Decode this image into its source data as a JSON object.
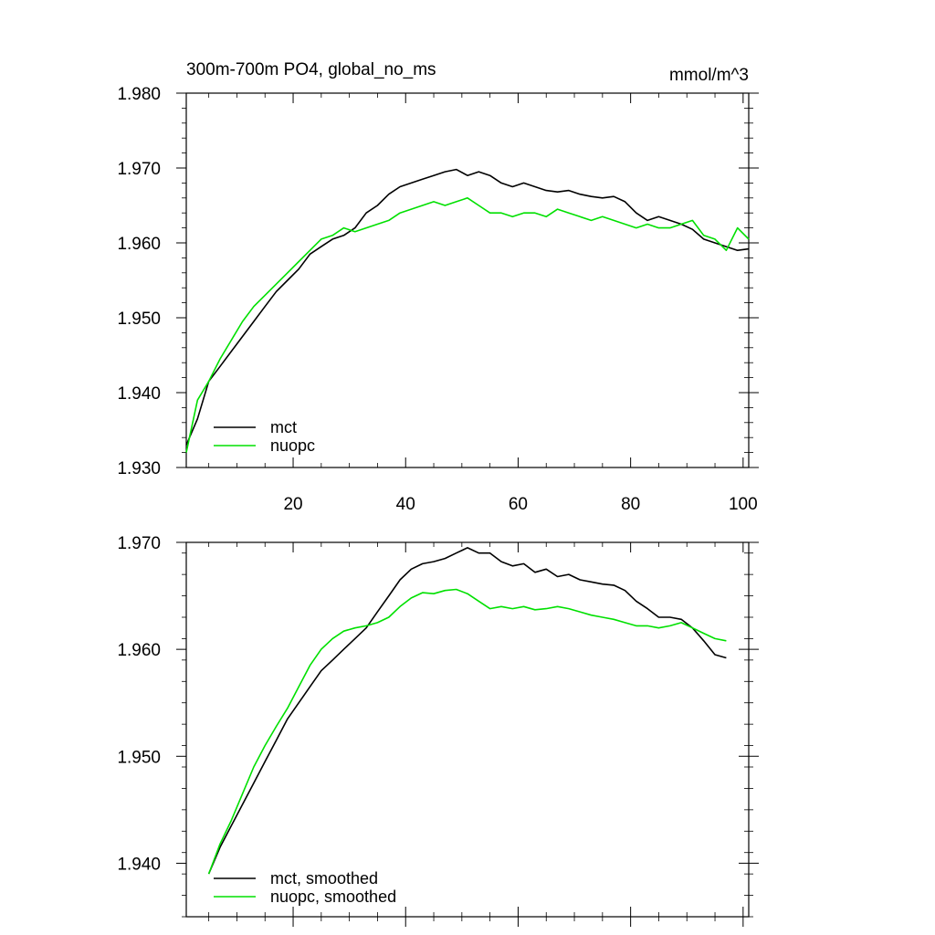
{
  "title_left": "300m-700m PO4, global_no_ms",
  "title_right": "mmol/m^3",
  "chart_data": [
    {
      "type": "line",
      "title": "300m-700m PO4, global_no_ms",
      "units": "mmol/m^3",
      "xlim": [
        1,
        101
      ],
      "ylim": [
        1.93,
        1.98
      ],
      "xticks": [
        20,
        40,
        60,
        80,
        100
      ],
      "xtick_labels": [
        "20",
        "40",
        "60",
        "80",
        "100"
      ],
      "yticks": [
        1.93,
        1.94,
        1.95,
        1.96,
        1.97,
        1.98
      ],
      "ytick_labels": [
        "1.930",
        "1.940",
        "1.950",
        "1.960",
        "1.970",
        "1.980"
      ],
      "legend_position": "bottom-left",
      "series": [
        {
          "name": "mct",
          "color": "#000000",
          "x": [
            1,
            3,
            5,
            7,
            9,
            11,
            13,
            15,
            17,
            19,
            21,
            23,
            25,
            27,
            29,
            31,
            33,
            35,
            37,
            39,
            41,
            43,
            45,
            47,
            49,
            51,
            53,
            55,
            57,
            59,
            61,
            63,
            65,
            67,
            69,
            71,
            73,
            75,
            77,
            79,
            81,
            83,
            85,
            87,
            89,
            91,
            93,
            95,
            97,
            99,
            101
          ],
          "values": [
            1.933,
            1.9365,
            1.9415,
            1.9435,
            1.9455,
            1.9475,
            1.9495,
            1.9515,
            1.9535,
            1.955,
            1.9565,
            1.9585,
            1.9595,
            1.9605,
            1.961,
            1.962,
            1.964,
            1.965,
            1.9665,
            1.9675,
            1.968,
            1.9685,
            1.969,
            1.9695,
            1.9698,
            1.969,
            1.9695,
            1.969,
            1.968,
            1.9675,
            1.968,
            1.9675,
            1.967,
            1.9668,
            1.967,
            1.9665,
            1.9662,
            1.966,
            1.9662,
            1.9655,
            1.964,
            1.963,
            1.9635,
            1.963,
            1.9625,
            1.9618,
            1.9605,
            1.96,
            1.9595,
            1.959,
            1.9592
          ]
        },
        {
          "name": "nuopc",
          "color": "#00e000",
          "x": [
            1,
            3,
            5,
            7,
            9,
            11,
            13,
            15,
            17,
            19,
            21,
            23,
            25,
            27,
            29,
            31,
            33,
            35,
            37,
            39,
            41,
            43,
            45,
            47,
            49,
            51,
            53,
            55,
            57,
            59,
            61,
            63,
            65,
            67,
            69,
            71,
            73,
            75,
            77,
            79,
            81,
            83,
            85,
            87,
            89,
            91,
            93,
            95,
            97,
            99,
            101
          ],
          "values": [
            1.932,
            1.939,
            1.9415,
            1.9445,
            1.947,
            1.9495,
            1.9515,
            1.953,
            1.9545,
            1.956,
            1.9575,
            1.959,
            1.9605,
            1.961,
            1.962,
            1.9615,
            1.962,
            1.9625,
            1.963,
            1.964,
            1.9645,
            1.965,
            1.9655,
            1.965,
            1.9655,
            1.966,
            1.965,
            1.964,
            1.964,
            1.9635,
            1.964,
            1.964,
            1.9635,
            1.9645,
            1.964,
            1.9635,
            1.963,
            1.9635,
            1.963,
            1.9625,
            1.962,
            1.9625,
            1.962,
            1.962,
            1.9625,
            1.963,
            1.961,
            1.9605,
            1.959,
            1.962,
            1.9605
          ]
        }
      ]
    },
    {
      "type": "line",
      "xlim": [
        1,
        101
      ],
      "ylim": [
        1.935,
        1.97
      ],
      "xticks": [
        20,
        40,
        60,
        80,
        100
      ],
      "yticks": [
        1.94,
        1.95,
        1.96,
        1.97
      ],
      "ytick_labels": [
        "1.940",
        "1.950",
        "1.960",
        "1.970"
      ],
      "legend_position": "bottom-left",
      "series": [
        {
          "name": "mct, smoothed",
          "color": "#000000",
          "x": [
            5,
            7,
            9,
            11,
            13,
            15,
            17,
            19,
            21,
            23,
            25,
            27,
            29,
            31,
            33,
            35,
            37,
            39,
            41,
            43,
            45,
            47,
            49,
            51,
            53,
            55,
            57,
            59,
            61,
            63,
            65,
            67,
            69,
            71,
            73,
            75,
            77,
            79,
            81,
            83,
            85,
            87,
            89,
            91,
            93,
            95,
            97
          ],
          "values": [
            1.939,
            1.9415,
            1.9435,
            1.9455,
            1.9475,
            1.9495,
            1.9515,
            1.9535,
            1.955,
            1.9565,
            1.958,
            1.959,
            1.96,
            1.961,
            1.962,
            1.9635,
            1.965,
            1.9665,
            1.9675,
            1.968,
            1.9682,
            1.9685,
            1.969,
            1.9695,
            1.969,
            1.969,
            1.9682,
            1.9678,
            1.968,
            1.9672,
            1.9675,
            1.9668,
            1.967,
            1.9665,
            1.9663,
            1.9661,
            1.966,
            1.9655,
            1.9645,
            1.9638,
            1.963,
            1.963,
            1.9628,
            1.962,
            1.9608,
            1.9595,
            1.9592
          ]
        },
        {
          "name": "nuopc, smoothed",
          "color": "#00e000",
          "x": [
            5,
            7,
            9,
            11,
            13,
            15,
            17,
            19,
            21,
            23,
            25,
            27,
            29,
            31,
            33,
            35,
            37,
            39,
            41,
            43,
            45,
            47,
            49,
            51,
            53,
            55,
            57,
            59,
            61,
            63,
            65,
            67,
            69,
            71,
            73,
            75,
            77,
            79,
            81,
            83,
            85,
            87,
            89,
            91,
            93,
            95,
            97
          ],
          "values": [
            1.939,
            1.9418,
            1.944,
            1.9465,
            1.949,
            1.951,
            1.9528,
            1.9545,
            1.9565,
            1.9585,
            1.96,
            1.961,
            1.9617,
            1.962,
            1.9622,
            1.9625,
            1.963,
            1.964,
            1.9648,
            1.9653,
            1.9652,
            1.9655,
            1.9656,
            1.9652,
            1.9645,
            1.9638,
            1.964,
            1.9638,
            1.964,
            1.9637,
            1.9638,
            1.964,
            1.9638,
            1.9635,
            1.9632,
            1.963,
            1.9628,
            1.9625,
            1.9622,
            1.9622,
            1.962,
            1.9622,
            1.9625,
            1.962,
            1.9615,
            1.961,
            1.9608
          ]
        }
      ]
    }
  ]
}
